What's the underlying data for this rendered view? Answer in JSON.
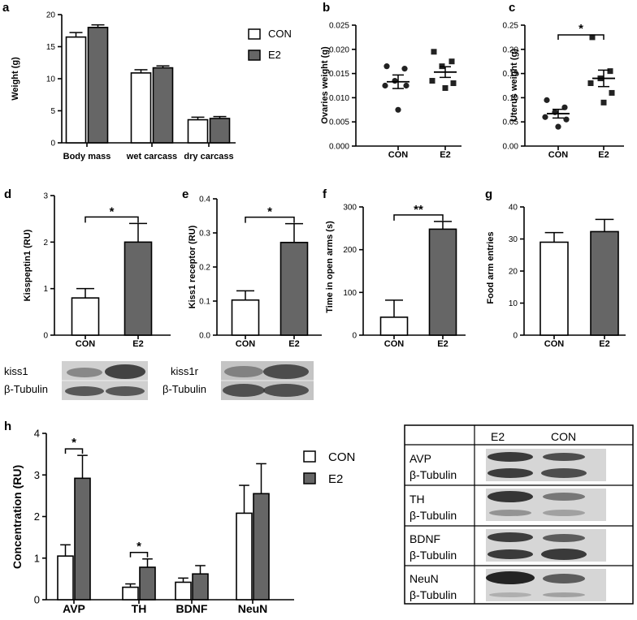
{
  "colors": {
    "con": "#ffffff",
    "e2": "#666666",
    "stroke": "#000000"
  },
  "legend_a": {
    "con": "CON",
    "e2": "E2"
  },
  "legend_h": {
    "con": "CON",
    "e2": "E2"
  },
  "chart_data": [
    {
      "panel": "a",
      "type": "bar",
      "categories": [
        "Body mass",
        "wet carcass",
        "dry carcass"
      ],
      "ylabel": "Weight (g)",
      "ylim": [
        0,
        20
      ],
      "yticks": [
        "0",
        "5",
        "10",
        "15",
        "20"
      ],
      "series": [
        {
          "name": "CON",
          "values": [
            16.5,
            10.9,
            3.6
          ],
          "errors": [
            0.7,
            0.5,
            0.4
          ]
        },
        {
          "name": "E2",
          "values": [
            18.0,
            11.7,
            3.8
          ],
          "errors": [
            0.4,
            0.3,
            0.3
          ]
        }
      ]
    },
    {
      "panel": "b",
      "type": "scatter",
      "categories": [
        "CON",
        "E2"
      ],
      "ylabel": "Ovaries weight (g)",
      "ylim": [
        0,
        0.025
      ],
      "yticks": [
        "0.000",
        "0.005",
        "0.010",
        "0.015",
        "0.020",
        "0.025"
      ],
      "series": [
        {
          "name": "CON",
          "points": [
            0.0165,
            0.016,
            0.0135,
            0.0125,
            0.0125,
            0.0075
          ],
          "mean": 0.0133,
          "sem": 0.0014
        },
        {
          "name": "E2",
          "points": [
            0.0195,
            0.0175,
            0.0165,
            0.0135,
            0.013,
            0.012
          ],
          "mean": 0.0153,
          "sem": 0.0011
        }
      ]
    },
    {
      "panel": "c",
      "type": "scatter",
      "categories": [
        "CON",
        "E2"
      ],
      "ylabel": "Uterus weight (g)",
      "ylim": [
        0,
        0.25
      ],
      "yticks": [
        "0.00",
        "0.05",
        "0.10",
        "0.15",
        "0.20",
        "0.25"
      ],
      "series": [
        {
          "name": "CON",
          "points": [
            0.095,
            0.08,
            0.07,
            0.06,
            0.055,
            0.04
          ],
          "mean": 0.067,
          "sem": 0.009
        },
        {
          "name": "E2",
          "points": [
            0.225,
            0.155,
            0.14,
            0.13,
            0.11,
            0.09
          ],
          "mean": 0.14,
          "sem": 0.017
        }
      ],
      "significance": "*"
    },
    {
      "panel": "d",
      "type": "bar",
      "categories": [
        "CON",
        "E2"
      ],
      "ylabel": "Kisspeptin1 (RU)",
      "ylim": [
        0,
        3
      ],
      "yticks": [
        "0",
        "1",
        "2",
        "3"
      ],
      "values": [
        0.8,
        2.0
      ],
      "errors": [
        0.2,
        0.4
      ],
      "significance": "*"
    },
    {
      "panel": "e",
      "type": "bar",
      "categories": [
        "CON",
        "E2"
      ],
      "ylabel": "Kiss1 receptor (RU)",
      "ylim": [
        0,
        0.4
      ],
      "yticks": [
        "0.0",
        "0.1",
        "0.2",
        "0.3",
        "0.4"
      ],
      "values": [
        0.103,
        0.272
      ],
      "errors": [
        0.027,
        0.055
      ],
      "significance": "*"
    },
    {
      "panel": "f",
      "type": "bar",
      "categories": [
        "CON",
        "E2"
      ],
      "ylabel": "Time in open arms (s)",
      "ylim": [
        0,
        300
      ],
      "yticks": [
        "0",
        "100",
        "200",
        "300"
      ],
      "values": [
        42,
        248
      ],
      "errors": [
        40,
        18
      ],
      "significance": "**"
    },
    {
      "panel": "g",
      "type": "bar",
      "categories": [
        "CON",
        "E2"
      ],
      "ylabel": "Food arm entries",
      "ylim": [
        0,
        40
      ],
      "yticks": [
        "0",
        "10",
        "20",
        "30",
        "40"
      ],
      "values": [
        29,
        32.3
      ],
      "errors": [
        3,
        3.8
      ]
    },
    {
      "panel": "h",
      "type": "bar",
      "categories": [
        "AVP",
        "TH",
        "BDNF",
        "NeuN"
      ],
      "ylabel": "Concentration (RU)",
      "ylim": [
        0,
        4
      ],
      "yticks": [
        "0",
        "1",
        "2",
        "3",
        "4"
      ],
      "series": [
        {
          "name": "CON",
          "values": [
            1.05,
            0.3,
            0.42,
            2.08
          ],
          "errors": [
            0.27,
            0.08,
            0.1,
            0.67
          ]
        },
        {
          "name": "E2",
          "values": [
            2.92,
            0.78,
            0.62,
            2.55
          ],
          "errors": [
            0.55,
            0.2,
            0.2,
            0.72
          ]
        }
      ],
      "significance": [
        "*",
        "*",
        "",
        ""
      ]
    }
  ],
  "blots_de": {
    "d_top": "kiss1",
    "d_bottom": "β-Tubulin",
    "e_top": "kiss1r",
    "e_bottom": "β-Tubulin"
  },
  "blots_h": {
    "header": [
      "E2",
      "CON"
    ],
    "rows": [
      {
        "label": "AVP",
        "sub": "β-Tubulin"
      },
      {
        "label": "TH",
        "sub": "β-Tubulin"
      },
      {
        "label": "BDNF",
        "sub": "β-Tubulin"
      },
      {
        "label": "NeuN",
        "sub": "β-Tubulin"
      }
    ]
  }
}
